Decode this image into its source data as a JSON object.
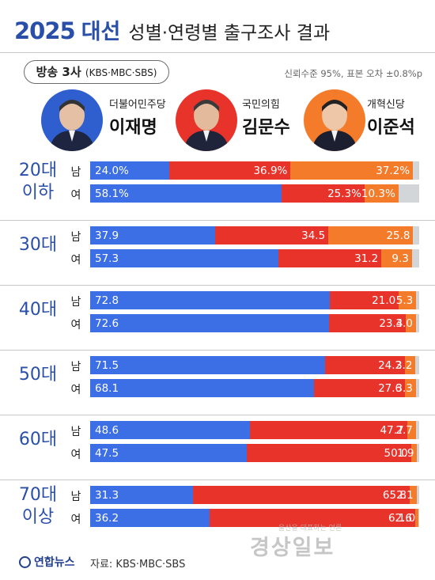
{
  "header": {
    "year": "2025",
    "event": "대선",
    "subtitle": "성별·연령별 출구조사 결과",
    "broadcaster_main": "방송 3사",
    "broadcaster_sub": "(KBS·MBC·SBS)",
    "note": "신뢰수준 95%, 표본 오차 ±0.8%p"
  },
  "colors": {
    "lee": "#3c6ee6",
    "kim": "#e8332a",
    "lee_js": "#f47b2a",
    "other": "#d3d6d8",
    "accent": "#2a4fa8"
  },
  "candidates": [
    {
      "party": "더불어민주당",
      "name": "이재명",
      "color": "#2f5fcf"
    },
    {
      "party": "국민의힘",
      "name": "김문수",
      "color": "#e8332a"
    },
    {
      "party": "개혁신당",
      "name": "이준석",
      "color": "#f47b2a"
    }
  ],
  "chart_data": {
    "type": "bar",
    "stacked": true,
    "orientation": "horizontal",
    "series_order": [
      "이재명",
      "김문수",
      "이준석"
    ],
    "groups": [
      {
        "age": [
          "20대",
          "이하"
        ],
        "rows": [
          {
            "gender": "남",
            "values": [
              24.0,
              36.9,
              37.2
            ],
            "labels": [
              "24.0%",
              "36.9%",
              "37.2%"
            ]
          },
          {
            "gender": "여",
            "values": [
              58.1,
              25.3,
              10.3
            ],
            "labels": [
              "58.1%",
              "25.3%",
              "10.3%"
            ]
          }
        ]
      },
      {
        "age": [
          "30대"
        ],
        "rows": [
          {
            "gender": "남",
            "values": [
              37.9,
              34.5,
              25.8
            ],
            "labels": [
              "37.9",
              "34.5",
              "25.8"
            ]
          },
          {
            "gender": "여",
            "values": [
              57.3,
              31.2,
              9.3
            ],
            "labels": [
              "57.3",
              "31.2",
              "9.3"
            ]
          }
        ]
      },
      {
        "age": [
          "40대"
        ],
        "rows": [
          {
            "gender": "남",
            "values": [
              72.8,
              21.0,
              5.3
            ],
            "labels": [
              "72.8",
              "21.0",
              "5.3"
            ]
          },
          {
            "gender": "여",
            "values": [
              72.6,
              23.4,
              3.0
            ],
            "labels": [
              "72.6",
              "23.4",
              "3.0"
            ]
          }
        ]
      },
      {
        "age": [
          "50대"
        ],
        "rows": [
          {
            "gender": "남",
            "values": [
              71.5,
              24.2,
              3.2
            ],
            "labels": [
              "71.5",
              "24.2",
              "3.2"
            ]
          },
          {
            "gender": "여",
            "values": [
              68.1,
              27.6,
              3.3
            ],
            "labels": [
              "68.1",
              "27.6",
              "3.3"
            ]
          }
        ]
      },
      {
        "age": [
          "60대"
        ],
        "rows": [
          {
            "gender": "남",
            "values": [
              48.6,
              47.7,
              2.7
            ],
            "labels": [
              "48.6",
              "47.7",
              "2.7"
            ]
          },
          {
            "gender": "여",
            "values": [
              47.5,
              50.0,
              1.9
            ],
            "labels": [
              "47.5",
              "50.0",
              "1.9"
            ]
          }
        ]
      },
      {
        "age": [
          "70대",
          "이상"
        ],
        "rows": [
          {
            "gender": "남",
            "values": [
              31.3,
              65.8,
              2.1
            ],
            "labels": [
              "31.3",
              "65.8",
              "2.1"
            ]
          },
          {
            "gender": "여",
            "values": [
              36.2,
              62.6,
              1.0
            ],
            "labels": [
              "36.2",
              "62.6",
              "1.0"
            ]
          }
        ]
      }
    ]
  },
  "footer": {
    "agency": "연합뉴스",
    "source": "자료: KBS·MBC·SBS",
    "watermark_small": "울산을 대표하는 언론",
    "watermark_big": "경상일보"
  }
}
